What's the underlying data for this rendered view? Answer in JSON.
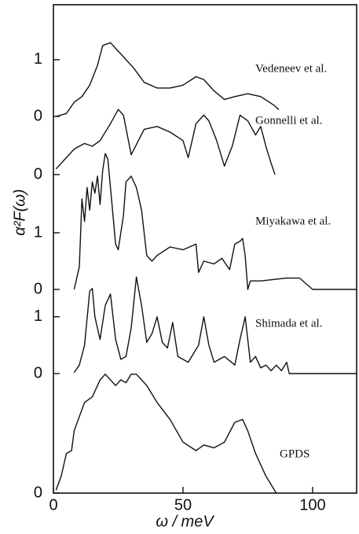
{
  "chart_data": [
    {
      "type": "line",
      "ylabel": "α²F(ω)",
      "xlabel": "ω / meV",
      "xlim": [
        0,
        117
      ],
      "xticks": [
        0,
        50,
        100
      ],
      "ylim": [
        0,
        1.9
      ],
      "yticks": [
        0,
        1
      ],
      "series": [
        {
          "name": "Vedeneev et al.",
          "color": "#111111",
          "x": [
            1,
            5,
            8,
            11,
            14,
            17,
            19,
            22,
            25,
            28,
            31,
            35,
            40,
            45,
            50,
            55,
            58,
            62,
            66,
            70,
            75,
            80,
            85,
            87
          ],
          "values": [
            0.0,
            0.05,
            0.25,
            0.35,
            0.55,
            0.9,
            1.25,
            1.3,
            1.15,
            1.0,
            0.85,
            0.6,
            0.5,
            0.5,
            0.55,
            0.7,
            0.65,
            0.45,
            0.3,
            0.35,
            0.4,
            0.35,
            0.2,
            0.12
          ]
        }
      ]
    },
    {
      "type": "line",
      "xlim": [
        0,
        117
      ],
      "ylim": [
        0,
        1.3
      ],
      "yticks": [
        0
      ],
      "series": [
        {
          "name": "Gonnelli et al.",
          "color": "#111111",
          "x": [
            1,
            4,
            8,
            12,
            15,
            18,
            22,
            25,
            27,
            30,
            35,
            40,
            45,
            50,
            52,
            55,
            58,
            60,
            63,
            66,
            69,
            72,
            75,
            78,
            80,
            82,
            84,
            85.5
          ],
          "values": [
            0.1,
            0.25,
            0.45,
            0.55,
            0.5,
            0.6,
            0.9,
            1.15,
            1.05,
            0.35,
            0.8,
            0.85,
            0.75,
            0.6,
            0.3,
            0.9,
            1.05,
            0.95,
            0.6,
            0.15,
            0.5,
            1.05,
            0.95,
            0.7,
            0.85,
            0.5,
            0.2,
            0.0
          ]
        }
      ]
    },
    {
      "type": "line",
      "xlim": [
        0,
        117
      ],
      "ylim": [
        0,
        2.5
      ],
      "yticks": [
        0,
        1
      ],
      "series": [
        {
          "name": "Miyakawa et al.",
          "color": "#111111",
          "x": [
            8,
            10,
            11,
            12,
            13,
            14,
            15,
            16,
            17,
            18,
            19,
            20,
            21,
            22,
            24,
            25,
            27,
            28,
            30,
            32,
            34,
            36,
            38,
            40,
            45,
            50,
            55,
            56,
            58,
            62,
            65,
            68,
            70,
            72,
            73,
            74,
            75,
            76,
            80,
            90,
            95,
            100,
            117
          ],
          "values": [
            0.0,
            0.4,
            1.6,
            1.2,
            1.8,
            1.4,
            1.9,
            1.7,
            2.0,
            1.5,
            2.1,
            2.4,
            2.3,
            1.8,
            0.8,
            0.7,
            1.3,
            1.9,
            2.0,
            1.8,
            1.4,
            0.6,
            0.5,
            0.6,
            0.75,
            0.7,
            0.8,
            0.3,
            0.5,
            0.45,
            0.55,
            0.35,
            0.8,
            0.85,
            0.9,
            0.6,
            0.0,
            0.15,
            0.15,
            0.2,
            0.2,
            0.0,
            0.0
          ]
        }
      ]
    },
    {
      "type": "line",
      "xlim": [
        0,
        117
      ],
      "ylim": [
        0,
        1.8
      ],
      "yticks": [
        0,
        1
      ],
      "series": [
        {
          "name": "Shimada et al.",
          "color": "#111111",
          "x": [
            8,
            10,
            12,
            14,
            15,
            16,
            18,
            20,
            22,
            24,
            26,
            28,
            30,
            32,
            34,
            36,
            38,
            40,
            42,
            44,
            46,
            48,
            52,
            56,
            58,
            60,
            62,
            66,
            70,
            72,
            74,
            76,
            78,
            80,
            82,
            84,
            86,
            88,
            90,
            91,
            117
          ],
          "values": [
            0.02,
            0.15,
            0.5,
            1.45,
            1.5,
            1.0,
            0.6,
            1.2,
            1.4,
            0.6,
            0.25,
            0.3,
            0.8,
            1.7,
            1.2,
            0.55,
            0.7,
            1.0,
            0.55,
            0.45,
            0.9,
            0.3,
            0.2,
            0.5,
            1.0,
            0.5,
            0.2,
            0.3,
            0.15,
            0.6,
            1.0,
            0.2,
            0.3,
            0.1,
            0.15,
            0.05,
            0.15,
            0.05,
            0.2,
            0.0,
            0.0
          ]
        }
      ]
    },
    {
      "type": "line",
      "xlim": [
        0,
        117
      ],
      "ylim": [
        0,
        2.3
      ],
      "yticks": [
        0
      ],
      "series": [
        {
          "name": "GPDS",
          "color": "#111111",
          "x": [
            1,
            3,
            5,
            7,
            8,
            10,
            12,
            15,
            18,
            20,
            22,
            24,
            26,
            28,
            30,
            32,
            34,
            36,
            40,
            45,
            50,
            55,
            58,
            62,
            66,
            70,
            73,
            75,
            78,
            82,
            86
          ],
          "values": [
            0.05,
            0.3,
            0.7,
            0.75,
            1.1,
            1.35,
            1.6,
            1.7,
            2.0,
            2.1,
            2.0,
            1.9,
            2.0,
            1.95,
            2.1,
            2.1,
            2.0,
            1.9,
            1.6,
            1.3,
            0.9,
            0.75,
            0.85,
            0.8,
            0.9,
            1.25,
            1.3,
            1.1,
            0.7,
            0.3,
            0.0
          ]
        }
      ]
    }
  ]
}
